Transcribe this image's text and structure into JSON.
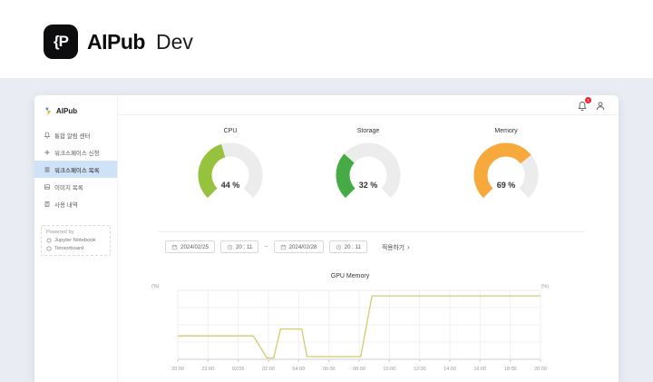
{
  "brand": {
    "glyph": "{P",
    "name": "AIPub",
    "suffix": "Dev"
  },
  "app": {
    "sidebar": {
      "logo_text": "AIPub",
      "items": [
        {
          "label": "통합 알림 센터",
          "icon": "bell-icon",
          "active": false
        },
        {
          "label": "워크스페이스 신청",
          "icon": "plus-icon",
          "active": false
        },
        {
          "label": "워크스페이스 목록",
          "icon": "list-icon",
          "active": true
        },
        {
          "label": "이미지 목록",
          "icon": "image-icon",
          "active": false
        },
        {
          "label": "사용 내역",
          "icon": "receipt-icon",
          "active": false
        }
      ],
      "powered_by": {
        "title": "Powered by",
        "links": [
          {
            "label": "Jupyter Notebook"
          },
          {
            "label": "Tensorboard"
          }
        ]
      }
    },
    "header": {
      "notification_count": "1"
    },
    "gauge_track_color": "#ececec",
    "gauges": [
      {
        "title": "CPU",
        "value": 44,
        "value_label": "44 %",
        "color": "#96c23d"
      },
      {
        "title": "Storage",
        "value": 32,
        "value_label": "32 %",
        "color": "#47ab45"
      },
      {
        "title": "Memory",
        "value": 69,
        "value_label": "69 %",
        "color": "#f7a93c"
      }
    ],
    "filter": {
      "start_date": "2024/02/25",
      "start_time": "20 : 11",
      "range_separator": "~",
      "end_date": "2024/02/28",
      "end_time": "20 : 11",
      "apply_label": "적용하기",
      "apply_chevron": "›"
    },
    "chart_data": {
      "type": "line",
      "title": "GPU Memory",
      "unit_label_left": "(%)",
      "unit_label_right": "(%)",
      "ylim": [
        0,
        100
      ],
      "x_hours_span": 24,
      "x_ticks": [
        "20:00",
        "22:00",
        "02/26",
        "02:00",
        "04:00",
        "06:00",
        "08:00",
        "10:00",
        "12:00",
        "14:00",
        "16:00",
        "18:00",
        "20:00"
      ],
      "grid": true,
      "legend": "none",
      "line_color": "#cdcd6d",
      "grid_color": "#efefef",
      "axis_color": "#cccccc",
      "series": [
        {
          "name": "GPU Memory",
          "points": [
            [
              0,
              34
            ],
            [
              5,
              34
            ],
            [
              5.9,
              2
            ],
            [
              6.35,
              2
            ],
            [
              6.8,
              44
            ],
            [
              8.2,
              44
            ],
            [
              8.55,
              4
            ],
            [
              12.1,
              4
            ],
            [
              12.85,
              92
            ],
            [
              24,
              92
            ]
          ]
        }
      ]
    }
  }
}
